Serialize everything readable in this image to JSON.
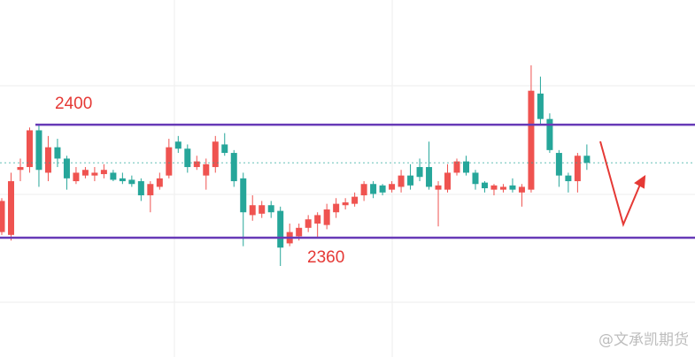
{
  "chart_data": {
    "type": "candlestick",
    "ylim": [
      2317.8,
      2444.1
    ],
    "up_color": "#ef5350",
    "down_color": "#26a69a",
    "level_color": "#673ab7",
    "levels": [
      2400,
      2360
    ],
    "watermark": "@文承凯期货",
    "open": [
      2362,
      2361,
      2384,
      2385,
      2398,
      2383,
      2392,
      2388,
      2380,
      2382,
      2382,
      2382.5,
      2383,
      2381,
      2380.5,
      2380,
      2375,
      2378,
      2382,
      2394,
      2391.5,
      2385,
      2382,
      2385,
      2393,
      2390,
      2381,
      2368,
      2368.5,
      2371.5,
      2369.5,
      2358,
      2360.5,
      2363.5,
      2365,
      2364.5,
      2369,
      2371.5,
      2372,
      2375,
      2379,
      2378.5,
      2377,
      2378,
      2382,
      2385,
      2385,
      2377,
      2377,
      2383,
      2387,
      2383,
      2379.5,
      2377,
      2377,
      2378.5,
      2376,
      2377,
      2411,
      2402,
      2390,
      2382,
      2380,
      2389
    ],
    "high": [
      2374,
      2383,
      2388,
      2399,
      2400,
      2396,
      2395,
      2389,
      2385,
      2385,
      2385,
      2386,
      2384,
      2383,
      2382,
      2381,
      2380,
      2383,
      2395,
      2396,
      2393,
      2389,
      2388,
      2396,
      2397,
      2391,
      2383,
      2375,
      2373,
      2373,
      2371,
      2365,
      2365,
      2368,
      2369,
      2372,
      2374,
      2374,
      2376,
      2380,
      2380,
      2379,
      2380,
      2384,
      2386,
      2388,
      2394,
      2380,
      2386,
      2388,
      2389,
      2384,
      2380,
      2379,
      2379,
      2381,
      2379,
      2421,
      2417,
      2404,
      2391,
      2383,
      2390,
      2393
    ],
    "low": [
      2361,
      2359,
      2380,
      2383,
      2378,
      2380,
      2385,
      2377,
      2379,
      2381,
      2380,
      2381,
      2380,
      2379,
      2378,
      2373,
      2369,
      2377,
      2381,
      2390,
      2383,
      2384,
      2377,
      2383,
      2389,
      2378,
      2357,
      2366,
      2367,
      2367,
      2350,
      2357,
      2359,
      2362,
      2360,
      2363,
      2367,
      2370,
      2371,
      2373,
      2374,
      2375,
      2376,
      2376,
      2377,
      2380,
      2377,
      2364,
      2376,
      2382,
      2382,
      2377,
      2376,
      2375,
      2376,
      2376,
      2371,
      2376,
      2400,
      2390,
      2378,
      2376,
      2376,
      2384
    ],
    "close": [
      2373,
      2380,
      2385,
      2398,
      2384,
      2392,
      2388,
      2381,
      2383,
      2384,
      2383,
      2384,
      2380.5,
      2380,
      2379,
      2375,
      2379,
      2381,
      2392,
      2391.5,
      2385,
      2387,
      2386,
      2394,
      2390,
      2380,
      2369,
      2371.5,
      2371.5,
      2369,
      2356.5,
      2362,
      2363.5,
      2366.5,
      2368,
      2370,
      2372,
      2372.5,
      2374.5,
      2379,
      2375.5,
      2376,
      2379,
      2382,
      2378.5,
      2381.5,
      2378,
      2378.5,
      2383,
      2387,
      2383,
      2379,
      2377.5,
      2378.5,
      2378,
      2377,
      2378,
      2412,
      2402,
      2391,
      2382,
      2380,
      2389,
      2386.5
    ]
  }
}
